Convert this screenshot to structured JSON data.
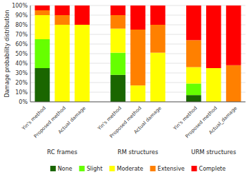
{
  "chart_data": {
    "type": "bar",
    "stacked": true,
    "categories": [
      "Yin's method",
      "Proposed method",
      "Actual damage",
      "Yin's method",
      "Proposed method",
      "Actual damage",
      "Yin's method",
      "Proposed method",
      "Actual_damage"
    ],
    "annotations": [
      "RC frames",
      "RM structures",
      "URM structures"
    ],
    "series": [
      {
        "name": "None",
        "color": "#1a6600",
        "values": [
          35,
          0,
          0,
          28,
          0,
          0,
          7,
          0,
          0
        ]
      },
      {
        "name": "Slight",
        "color": "#66ff00",
        "values": [
          30,
          0,
          0,
          23,
          0,
          0,
          12,
          0,
          0
        ]
      },
      {
        "name": "Moderate",
        "color": "#ffff00",
        "values": [
          25,
          80,
          80,
          25,
          17,
          51,
          17,
          35,
          0
        ]
      },
      {
        "name": "Extensive",
        "color": "#ff8000",
        "values": [
          5,
          10,
          0,
          14,
          58,
          29,
          28,
          0,
          38
        ]
      },
      {
        "name": "Complete",
        "color": "#ff0000",
        "values": [
          5,
          10,
          20,
          10,
          25,
          20,
          36,
          65,
          62
        ]
      }
    ],
    "y_label": "Damage probability distribution",
    "ylim": [
      0,
      100
    ],
    "yticks": [
      {
        "value": 0,
        "label": "0%"
      },
      {
        "value": 10,
        "label": "10%"
      },
      {
        "value": 20,
        "label": "20%"
      },
      {
        "value": 30,
        "label": "30%"
      },
      {
        "value": 40,
        "label": "40%"
      },
      {
        "value": 50,
        "label": "50%"
      },
      {
        "value": 60,
        "label": "60%"
      },
      {
        "value": 70,
        "label": "70%"
      },
      {
        "value": 80,
        "label": "80%"
      },
      {
        "value": 90,
        "label": "90%"
      },
      {
        "value": 100,
        "label": "100%"
      }
    ],
    "grid": true,
    "legend": "bottom"
  }
}
